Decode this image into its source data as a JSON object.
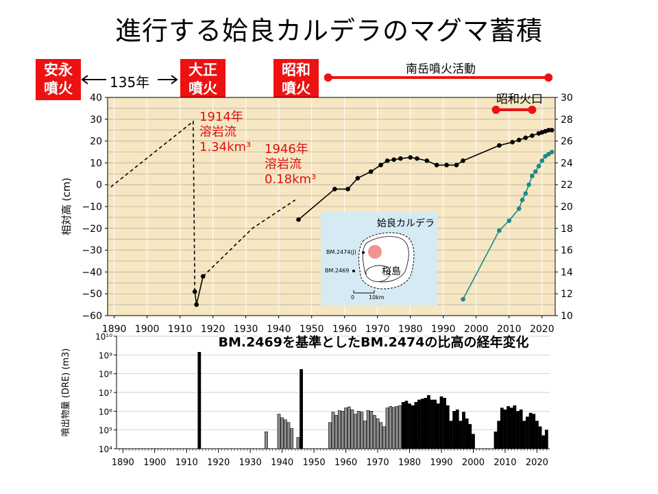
{
  "title": "進行する姶良カルデラのマグマ蓄積",
  "events": {
    "anei": "安永\n噴火",
    "taisho": "大正\n噴火",
    "showa": "昭和\n噴火",
    "gap": "135年"
  },
  "activity": {
    "minamidake": "南岳噴火活動",
    "showa_crater": "昭和火口"
  },
  "annotations": {
    "lava1914": [
      "1914年",
      "溶岩流",
      "1.34km³"
    ],
    "lava1946": [
      "1946年",
      "溶岩流",
      "0.18km³"
    ]
  },
  "inset": {
    "title": "姶良カルデラ",
    "bm2474": "BM.2474(J)",
    "bm2469": "BM.2469",
    "sakurajima": "桜島",
    "scale_zero": "0",
    "scale_10": "10km"
  },
  "chart_data": [
    {
      "type": "line",
      "title": "BM.2469を基準としたBM.2474の比高の経年変化",
      "ylabel": "相対高 (cm)",
      "xlim": [
        1888,
        2024
      ],
      "ylim": [
        -60,
        40
      ],
      "y2lim": [
        10,
        30
      ],
      "grid": true,
      "x_ticks": [
        1890,
        1900,
        1910,
        1920,
        1930,
        1940,
        1950,
        1960,
        1970,
        1980,
        1990,
        2000,
        2010,
        2020
      ],
      "y_ticks": [
        -60,
        -50,
        -40,
        -30,
        -20,
        -10,
        0,
        10,
        20,
        30,
        40
      ],
      "y2_ticks": [
        10,
        12,
        14,
        16,
        18,
        20,
        22,
        24,
        26,
        28,
        30
      ],
      "series": [
        {
          "style": "dashed",
          "points": [
            [
              1889,
              -1
            ],
            [
              1914,
              29
            ],
            [
              1914.5,
              -49
            ]
          ]
        },
        {
          "style": "solid-markers",
          "points": [
            [
              1914.5,
              -49
            ],
            [
              1915,
              -55
            ],
            [
              1917,
              -42
            ]
          ]
        },
        {
          "style": "dashed",
          "points": [
            [
              1917,
              -42
            ],
            [
              1932,
              -20
            ],
            [
              1945,
              -7
            ]
          ]
        },
        {
          "style": "solid-markers",
          "points": [
            [
              1946,
              -16
            ],
            [
              1957,
              -2
            ],
            [
              1961,
              -2
            ],
            [
              1964,
              3
            ],
            [
              1968,
              6
            ],
            [
              1971,
              9
            ],
            [
              1973,
              11
            ],
            [
              1975,
              11.5
            ],
            [
              1977,
              12
            ],
            [
              1980,
              12.5
            ],
            [
              1982,
              12
            ],
            [
              1985,
              11
            ],
            [
              1988,
              9
            ],
            [
              1991,
              9
            ],
            [
              1994,
              9
            ],
            [
              1996,
              11
            ],
            [
              2007,
              18
            ],
            [
              2011,
              19.5
            ],
            [
              2013,
              20.5
            ],
            [
              2015,
              21.5
            ],
            [
              2017,
              22.5
            ],
            [
              2019,
              23.5
            ],
            [
              2020,
              24
            ],
            [
              2021,
              24.5
            ],
            [
              2022,
              25
            ],
            [
              2023,
              25
            ]
          ]
        },
        {
          "style": "teal-right-axis",
          "points": [
            [
              1996,
              11.5
            ],
            [
              2007,
              17.8
            ],
            [
              2010,
              18.7
            ],
            [
              2013,
              19.8
            ],
            [
              2014,
              20.6
            ],
            [
              2015,
              21.2
            ],
            [
              2016,
              22
            ],
            [
              2017,
              22.8
            ],
            [
              2018,
              23.2
            ],
            [
              2019,
              23.7
            ],
            [
              2020,
              24.2
            ],
            [
              2021,
              24.6
            ],
            [
              2022,
              24.8
            ],
            [
              2023,
              25
            ]
          ]
        }
      ],
      "activity_bars": [
        {
          "label": "南岳噴火活動",
          "from": 1955,
          "to": 2023
        },
        {
          "label": "昭和火口",
          "from": 2006,
          "to": 2017
        }
      ]
    },
    {
      "type": "bar",
      "ylabel": "噴出物量 (DRE) (m3)",
      "scale": "log",
      "ylim": [
        10000,
        10000000000
      ],
      "y_ticks": [
        10000,
        100000,
        1000000,
        10000000,
        100000000,
        1000000000,
        10000000000
      ],
      "y_tick_labels": [
        "10⁴",
        "10⁵",
        "10⁶",
        "10⁷",
        "10⁸",
        "10⁹",
        "10¹⁰"
      ],
      "x_ticks": [
        1890,
        1900,
        1910,
        1920,
        1930,
        1940,
        1950,
        1960,
        1970,
        1980,
        1990,
        2000,
        2010,
        2020
      ],
      "bars": [
        [
          1914,
          1400000000,
          "black"
        ],
        [
          1935,
          80000,
          "gray"
        ],
        [
          1939,
          700000,
          "gray"
        ],
        [
          1940,
          450000,
          "gray"
        ],
        [
          1941,
          350000,
          "gray"
        ],
        [
          1942,
          250000,
          "gray"
        ],
        [
          1943,
          120000,
          "gray"
        ],
        [
          1945,
          40000,
          "gray"
        ],
        [
          1946,
          170000000,
          "black"
        ],
        [
          1955,
          250000,
          "gray"
        ],
        [
          1956,
          900000,
          "gray"
        ],
        [
          1957,
          600000,
          "gray"
        ],
        [
          1958,
          1100000,
          "gray"
        ],
        [
          1959,
          1000000,
          "gray"
        ],
        [
          1960,
          1500000,
          "gray"
        ],
        [
          1961,
          1700000,
          "gray"
        ],
        [
          1962,
          1200000,
          "gray"
        ],
        [
          1963,
          700000,
          "gray"
        ],
        [
          1964,
          1000000,
          "gray"
        ],
        [
          1965,
          900000,
          "gray"
        ],
        [
          1966,
          300000,
          "gray"
        ],
        [
          1967,
          1100000,
          "gray"
        ],
        [
          1968,
          1000000,
          "gray"
        ],
        [
          1969,
          600000,
          "gray"
        ],
        [
          1970,
          400000,
          "gray"
        ],
        [
          1971,
          250000,
          "gray"
        ],
        [
          1972,
          150000,
          "gray"
        ],
        [
          1973,
          1500000,
          "gray"
        ],
        [
          1974,
          1800000,
          "gray"
        ],
        [
          1975,
          1600000,
          "gray"
        ],
        [
          1976,
          1800000,
          "gray"
        ],
        [
          1977,
          2000000,
          "gray"
        ],
        [
          1978,
          3000000,
          "black"
        ],
        [
          1979,
          3500000,
          "black"
        ],
        [
          1980,
          2500000,
          "black"
        ],
        [
          1981,
          2000000,
          "black"
        ],
        [
          1982,
          3000000,
          "black"
        ],
        [
          1983,
          4000000,
          "black"
        ],
        [
          1984,
          4500000,
          "black"
        ],
        [
          1985,
          5000000,
          "black"
        ],
        [
          1986,
          7000000,
          "black"
        ],
        [
          1987,
          4000000,
          "black"
        ],
        [
          1988,
          4000000,
          "black"
        ],
        [
          1989,
          2500000,
          "black"
        ],
        [
          1990,
          6000000,
          "black"
        ],
        [
          1991,
          5000000,
          "black"
        ],
        [
          1992,
          2000000,
          "black"
        ],
        [
          1993,
          300000,
          "black"
        ],
        [
          1994,
          1000000,
          "black"
        ],
        [
          1995,
          1200000,
          "black"
        ],
        [
          1996,
          300000,
          "black"
        ],
        [
          1997,
          900000,
          "black"
        ],
        [
          1998,
          400000,
          "black"
        ],
        [
          1999,
          200000,
          "black"
        ],
        [
          2000,
          60000,
          "black"
        ],
        [
          2007,
          80000,
          "black"
        ],
        [
          2008,
          300000,
          "black"
        ],
        [
          2009,
          1500000,
          "black"
        ],
        [
          2010,
          1200000,
          "black"
        ],
        [
          2011,
          1800000,
          "black"
        ],
        [
          2012,
          1500000,
          "black"
        ],
        [
          2013,
          2000000,
          "black"
        ],
        [
          2014,
          1000000,
          "black"
        ],
        [
          2015,
          1200000,
          "black"
        ],
        [
          2016,
          300000,
          "black"
        ],
        [
          2017,
          500000,
          "black"
        ],
        [
          2018,
          800000,
          "black"
        ],
        [
          2019,
          700000,
          "black"
        ],
        [
          2020,
          300000,
          "black"
        ],
        [
          2021,
          150000,
          "black"
        ],
        [
          2022,
          50000,
          "black"
        ],
        [
          2023,
          100000,
          "black"
        ]
      ]
    }
  ]
}
